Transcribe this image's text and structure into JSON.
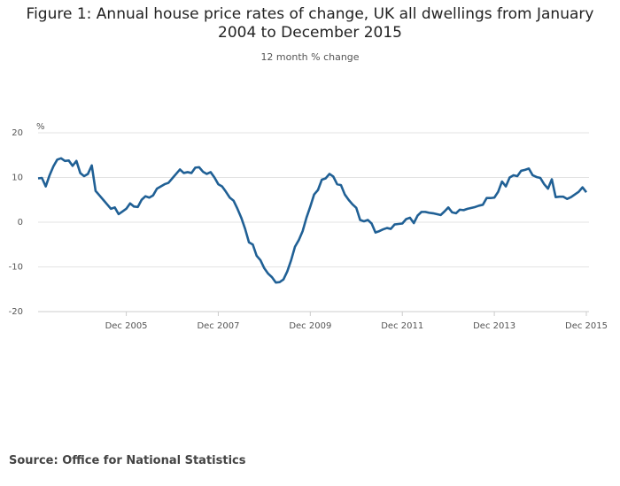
{
  "chart_data": {
    "type": "line",
    "title": "Figure 1: Annual house price rates of change, UK all dwellings from January 2004 to December 2015",
    "subtitle": "12 month % change",
    "y_label": "%",
    "source": "Source: Office for National Statistics",
    "categories": [
      null,
      null,
      null,
      null,
      null,
      null,
      null,
      null,
      null,
      null,
      null,
      null,
      null,
      null,
      null,
      null,
      null,
      null,
      null,
      null,
      null,
      null,
      null,
      "Dec 2005",
      null,
      null,
      null,
      null,
      null,
      null,
      null,
      null,
      null,
      null,
      null,
      null,
      null,
      null,
      null,
      null,
      null,
      null,
      null,
      null,
      null,
      null,
      null,
      "Dec 2007",
      null,
      null,
      null,
      null,
      null,
      null,
      null,
      null,
      null,
      null,
      null,
      null,
      null,
      null,
      null,
      null,
      null,
      null,
      null,
      null,
      null,
      null,
      null,
      "Dec 2009",
      null,
      null,
      null,
      null,
      null,
      null,
      null,
      null,
      null,
      null,
      null,
      null,
      null,
      null,
      null,
      null,
      null,
      null,
      null,
      null,
      null,
      null,
      null,
      "Dec 2011",
      null,
      null,
      null,
      null,
      null,
      null,
      null,
      null,
      null,
      null,
      null,
      null,
      null,
      null,
      null,
      null,
      null,
      null,
      null,
      null,
      null,
      null,
      null,
      "Dec 2013",
      null,
      null,
      null,
      null,
      null,
      null,
      null,
      null,
      null,
      null,
      null,
      null,
      null,
      null,
      null,
      null,
      null,
      null,
      null,
      null,
      null,
      null,
      null,
      "Dec 2015"
    ],
    "series": [
      {
        "color": "#206095",
        "values": [
          9.8,
          9.9,
          8.0,
          10.5,
          12.5,
          14.0,
          14.3,
          13.7,
          13.8,
          12.6,
          13.7,
          11.0,
          10.3,
          10.8,
          12.7,
          7.0,
          6.0,
          5.0,
          4.0,
          3.0,
          3.3,
          1.8,
          2.4,
          3.0,
          4.2,
          3.5,
          3.4,
          5.0,
          5.8,
          5.5,
          6.0,
          7.5,
          8.0,
          8.5,
          8.8,
          9.8,
          10.8,
          11.8,
          11.0,
          11.2,
          11.0,
          12.2,
          12.3,
          11.3,
          10.8,
          11.2,
          10.0,
          8.5,
          8.0,
          6.8,
          5.5,
          4.8,
          3.0,
          1.0,
          -1.5,
          -4.5,
          -5.0,
          -7.5,
          -8.5,
          -10.3,
          -11.5,
          -12.3,
          -13.5,
          -13.4,
          -12.8,
          -11.0,
          -8.5,
          -5.5,
          -4.0,
          -2.0,
          1.0,
          3.5,
          6.2,
          7.2,
          9.5,
          9.8,
          10.8,
          10.2,
          8.5,
          8.3,
          6.2,
          5.0,
          4.0,
          3.2,
          0.5,
          0.2,
          0.5,
          -0.3,
          -2.3,
          -2.0,
          -1.6,
          -1.3,
          -1.5,
          -0.5,
          -0.4,
          -0.3,
          0.7,
          1.0,
          -0.2,
          1.5,
          2.3,
          2.3,
          2.1,
          2.0,
          1.8,
          1.6,
          2.4,
          3.3,
          2.2,
          2.0,
          2.8,
          2.7,
          3.0,
          3.2,
          3.4,
          3.7,
          3.9,
          5.4,
          5.4,
          5.5,
          6.8,
          9.1,
          8.0,
          10.0,
          10.5,
          10.3,
          11.5,
          11.7,
          12.0,
          10.5,
          10.1,
          9.9,
          8.5,
          7.5,
          9.6,
          5.6,
          5.7,
          5.7,
          5.2,
          5.6,
          6.2,
          6.8,
          7.8,
          6.7
        ]
      }
    ],
    "ylim": [
      -20,
      20
    ],
    "yticks": [
      -20,
      -10,
      0,
      10,
      20
    ],
    "grid": true
  }
}
